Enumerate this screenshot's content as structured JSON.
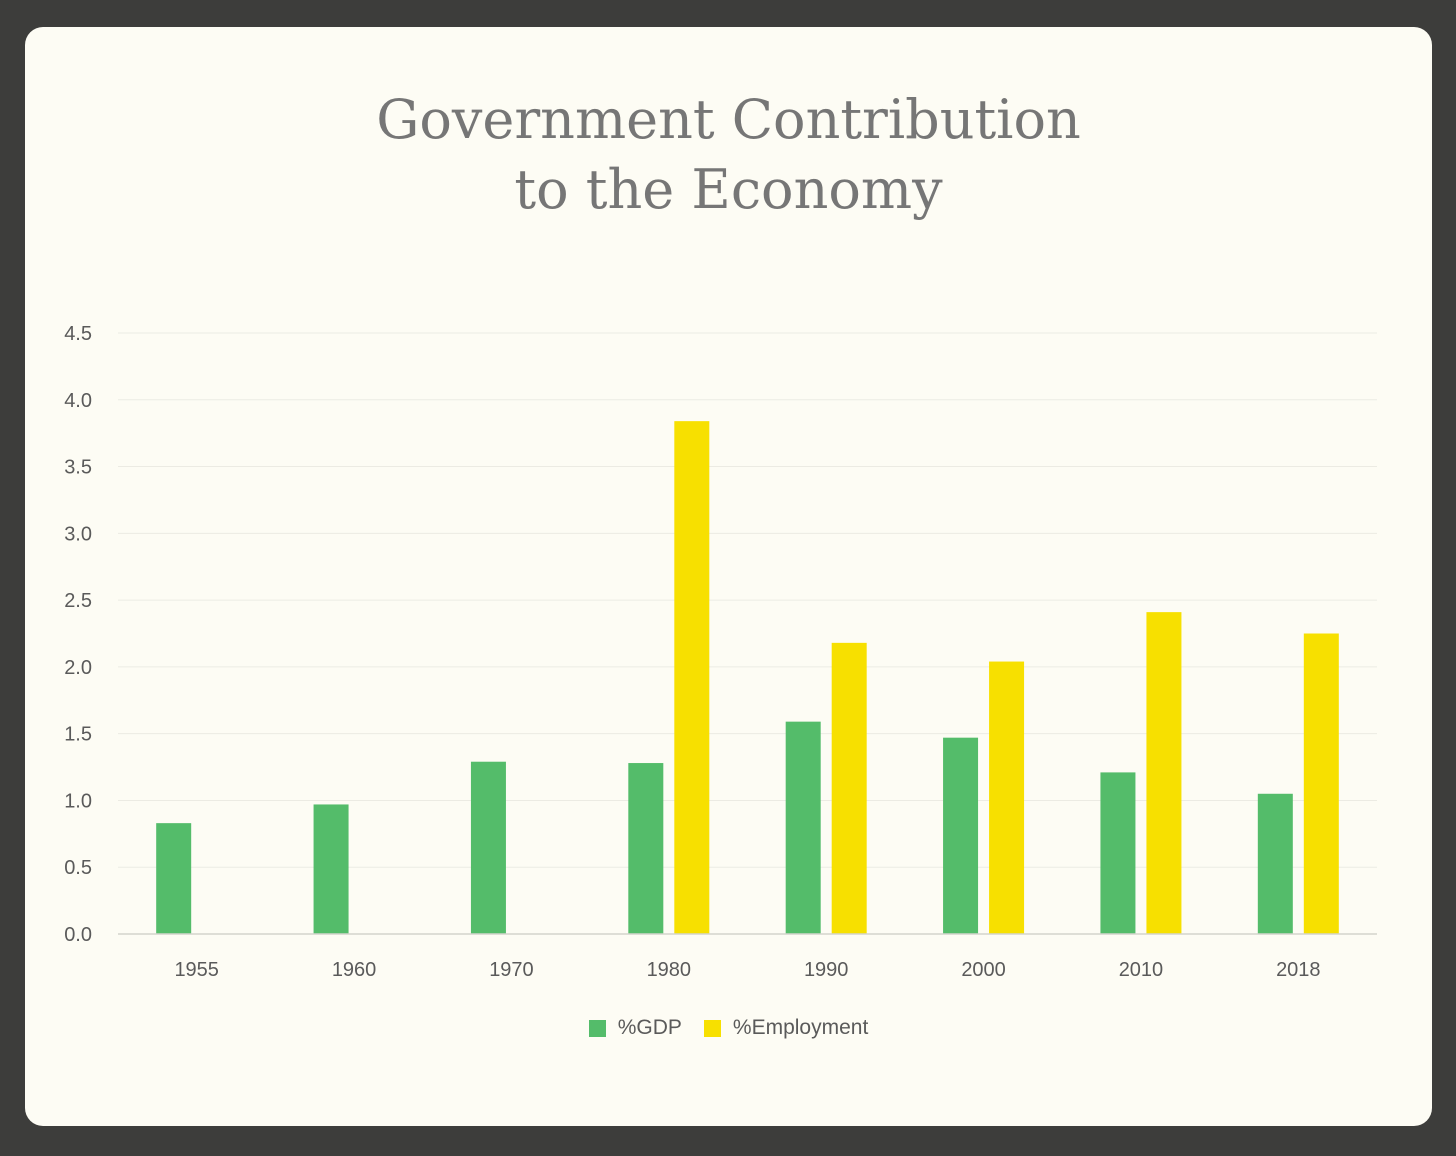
{
  "colors": {
    "background": "#3d3d3b",
    "card": "#fdfcf4",
    "title": "#767676",
    "gdp": "#54bc6a",
    "employment": "#f7e000",
    "grid": "#ecebe3",
    "axis": "#d4d4cc"
  },
  "chart_data": {
    "type": "bar",
    "title": "Government Contribution to the Economy",
    "title_lines": [
      "Government Contribution",
      "to the Economy"
    ],
    "xlabel": "",
    "ylabel": "",
    "categories": [
      "1955",
      "1960",
      "1970",
      "1980",
      "1990",
      "2000",
      "2010",
      "2018"
    ],
    "series": [
      {
        "name": "%GDP",
        "values": [
          0.83,
          0.97,
          1.29,
          1.28,
          1.59,
          1.47,
          1.21,
          1.05
        ]
      },
      {
        "name": "%Employment",
        "values": [
          null,
          null,
          null,
          3.84,
          2.18,
          2.04,
          2.41,
          2.25
        ]
      }
    ],
    "ylim": [
      0,
      4.5
    ],
    "yticks": [
      "0.0",
      "0.5",
      "1.0",
      "1.5",
      "2.0",
      "2.5",
      "3.0",
      "3.5",
      "4.0",
      "4.5"
    ],
    "grid": true,
    "legend": "bottom-center"
  }
}
